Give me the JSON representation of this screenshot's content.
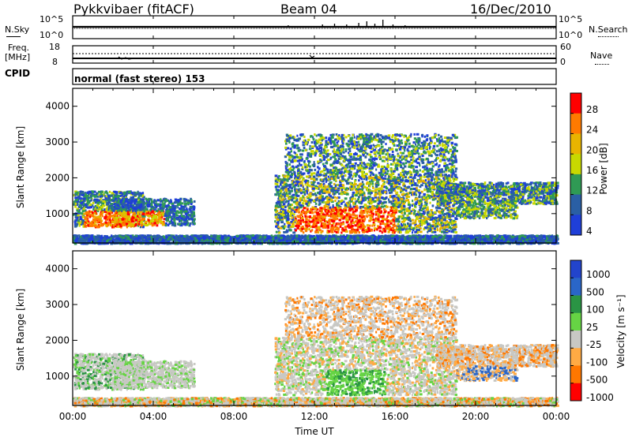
{
  "header": {
    "station": "Pykkvibaer (fitACF)",
    "beam": "Beam 04",
    "date": "16/Dec/2010"
  },
  "noise_panel": {
    "left_label": "N.Sky",
    "right_label": "N.Search",
    "left_ticks": [
      "10^5",
      "10^0"
    ],
    "right_ticks": [
      "10^5",
      "10^0"
    ]
  },
  "freq_panel": {
    "left_label_line1": "Freq.",
    "left_label_line2": "[MHz]",
    "right_label": "Nave",
    "left_ticks": [
      "18",
      "8"
    ],
    "right_ticks": [
      "60",
      "0"
    ]
  },
  "cpid": {
    "label": "CPID",
    "text": "normal (fast stereo) 153"
  },
  "chart_data": [
    {
      "type": "heatmap",
      "name": "power",
      "ylabel": "Slant Range [km]",
      "ylim": [
        180,
        4500
      ],
      "yticks": [
        "1000",
        "2000",
        "3000",
        "4000"
      ],
      "colorbar_label": "Power [dB]",
      "colorbar_ticks": [
        "28",
        "24",
        "20",
        "16",
        "12",
        "8",
        "4"
      ],
      "colorbar_colors": [
        "#ff0000",
        "#ff7a00",
        "#e8b400",
        "#c8d800",
        "#2f9a54",
        "#2a5fa4",
        "#1f3fd8"
      ]
    },
    {
      "type": "heatmap",
      "name": "velocity",
      "ylabel": "Slant Range [km]",
      "ylim": [
        180,
        4500
      ],
      "yticks": [
        "1000",
        "2000",
        "3000",
        "4000"
      ],
      "colorbar_label": "Velocity [m s⁻¹]",
      "colorbar_ticks": [
        "1000",
        "500",
        "100",
        "25",
        "-25",
        "-100",
        "-500",
        "-1000"
      ],
      "colorbar_colors": [
        "#2244cc",
        "#2a66c8",
        "#2a9444",
        "#66d444",
        "#c8c8c4",
        "#ffaa44",
        "#ff7700",
        "#ff0000"
      ]
    }
  ],
  "x_axis": {
    "label": "Time UT",
    "ticks": [
      "00:00",
      "04:00",
      "08:00",
      "12:00",
      "16:00",
      "20:00",
      "00:00"
    ]
  }
}
